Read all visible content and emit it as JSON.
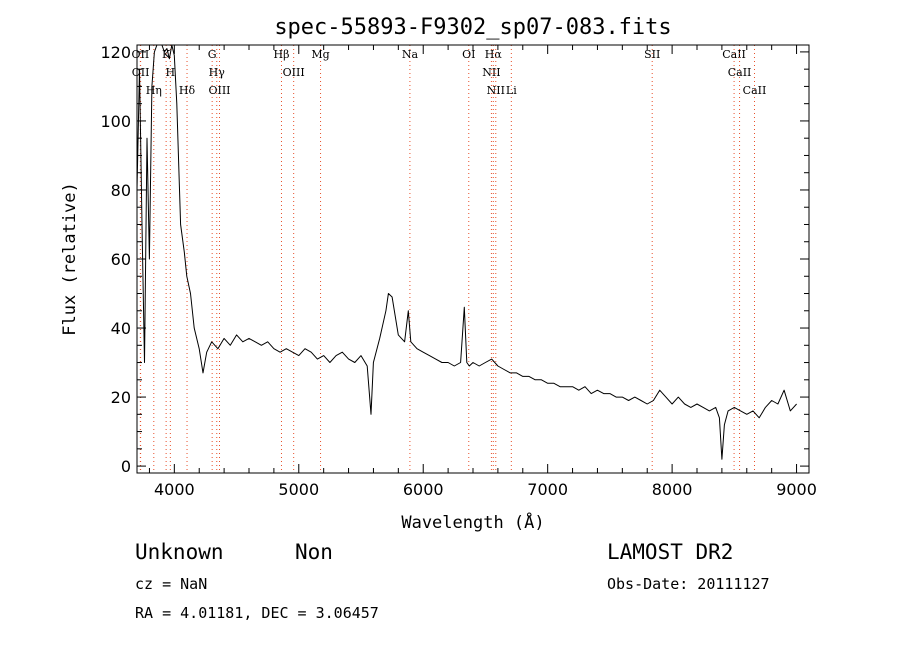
{
  "chart_data": {
    "type": "line",
    "title": "spec-55893-F9302_sp07-083.fits",
    "xlabel": "Wavelength (Å)",
    "ylabel": "Flux (relative)",
    "xlim": [
      3700,
      9100
    ],
    "ylim": [
      -2,
      122
    ],
    "grid": false,
    "xticks": [
      4000,
      5000,
      6000,
      7000,
      8000,
      9000
    ],
    "yticks": [
      0,
      20,
      40,
      60,
      80,
      100,
      120
    ],
    "series": [
      {
        "x": [
          3700,
          3720,
          3740,
          3760,
          3780,
          3800,
          3820,
          3840,
          3860,
          3880,
          3900,
          3920,
          3940,
          3960,
          3980,
          4000,
          4020,
          4050,
          4080,
          4100,
          4130,
          4160,
          4200,
          4230,
          4260,
          4300,
          4350,
          4400,
          4450,
          4500,
          4550,
          4600,
          4650,
          4700,
          4750,
          4800,
          4850,
          4900,
          4950,
          5000,
          5050,
          5100,
          5150,
          5200,
          5250,
          5300,
          5350,
          5400,
          5450,
          5500,
          5550,
          5580,
          5600,
          5650,
          5700,
          5720,
          5750,
          5800,
          5850,
          5880,
          5900,
          5950,
          6000,
          6050,
          6100,
          6150,
          6200,
          6250,
          6300,
          6330,
          6350,
          6370,
          6400,
          6450,
          6500,
          6550,
          6600,
          6650,
          6700,
          6750,
          6800,
          6850,
          6900,
          6950,
          7000,
          7050,
          7100,
          7150,
          7200,
          7250,
          7300,
          7350,
          7400,
          7450,
          7500,
          7550,
          7600,
          7650,
          7700,
          7750,
          7800,
          7850,
          7900,
          7950,
          8000,
          8050,
          8100,
          8150,
          8200,
          8250,
          8300,
          8350,
          8380,
          8400,
          8420,
          8450,
          8500,
          8550,
          8600,
          8650,
          8700,
          8750,
          8800,
          8850,
          8900,
          8950,
          9000
        ],
        "y": [
          80,
          115,
          70,
          30,
          95,
          60,
          110,
          120,
          122,
          122,
          122,
          120,
          121,
          118,
          122,
          119,
          105,
          70,
          62,
          55,
          50,
          40,
          34,
          27,
          33,
          36,
          34,
          37,
          35,
          38,
          36,
          37,
          36,
          35,
          36,
          34,
          33,
          34,
          33,
          32,
          34,
          33,
          31,
          32,
          30,
          32,
          33,
          31,
          30,
          32,
          29,
          15,
          30,
          37,
          45,
          50,
          49,
          38,
          36,
          45,
          36,
          34,
          33,
          32,
          31,
          30,
          30,
          29,
          30,
          46,
          30,
          29,
          30,
          29,
          30,
          31,
          29,
          28,
          27,
          27,
          26,
          26,
          25,
          25,
          24,
          24,
          23,
          23,
          23,
          22,
          23,
          21,
          22,
          21,
          21,
          20,
          20,
          19,
          20,
          19,
          18,
          19,
          22,
          20,
          18,
          20,
          18,
          17,
          18,
          17,
          16,
          17,
          14,
          2,
          12,
          16,
          17,
          16,
          15,
          16,
          14,
          17,
          19,
          18,
          22,
          16,
          18
        ]
      }
    ],
    "lines": [
      {
        "label": "OII",
        "wl": 3727
      },
      {
        "label": "OII",
        "wl": 3729
      },
      {
        "label": "Hη",
        "wl": 3835
      },
      {
        "label": "K",
        "wl": 3934
      },
      {
        "label": "H",
        "wl": 3968
      },
      {
        "label": "Hδ",
        "wl": 4102
      },
      {
        "label": "G",
        "wl": 4304
      },
      {
        "label": "Hγ",
        "wl": 4341
      },
      {
        "label": "OIII",
        "wl": 4363
      },
      {
        "label": "Hβ",
        "wl": 4861
      },
      {
        "label": "OIII",
        "wl": 4959
      },
      {
        "label": "Mg",
        "wl": 5175
      },
      {
        "label": "Na",
        "wl": 5893
      },
      {
        "label": "OI",
        "wl": 6366
      },
      {
        "label": "NII",
        "wl": 6548
      },
      {
        "label": "Hα",
        "wl": 6563
      },
      {
        "label": "NII",
        "wl": 6583
      },
      {
        "label": "Li",
        "wl": 6708
      },
      {
        "label": "SII",
        "wl": 7840
      },
      {
        "label": "CaII",
        "wl": 8498
      },
      {
        "label": "CaII",
        "wl": 8542
      },
      {
        "label": "CaII",
        "wl": 8662
      }
    ],
    "colors": {
      "spectrum": "#000000",
      "lines": "#e8502a"
    }
  },
  "info": {
    "class": "Unknown",
    "subclass": "Non",
    "survey": "LAMOST DR2",
    "cz": "cz = NaN",
    "obs_date": "Obs-Date: 20111127",
    "coords": "RA =   4.01181, DEC =   3.06457"
  }
}
